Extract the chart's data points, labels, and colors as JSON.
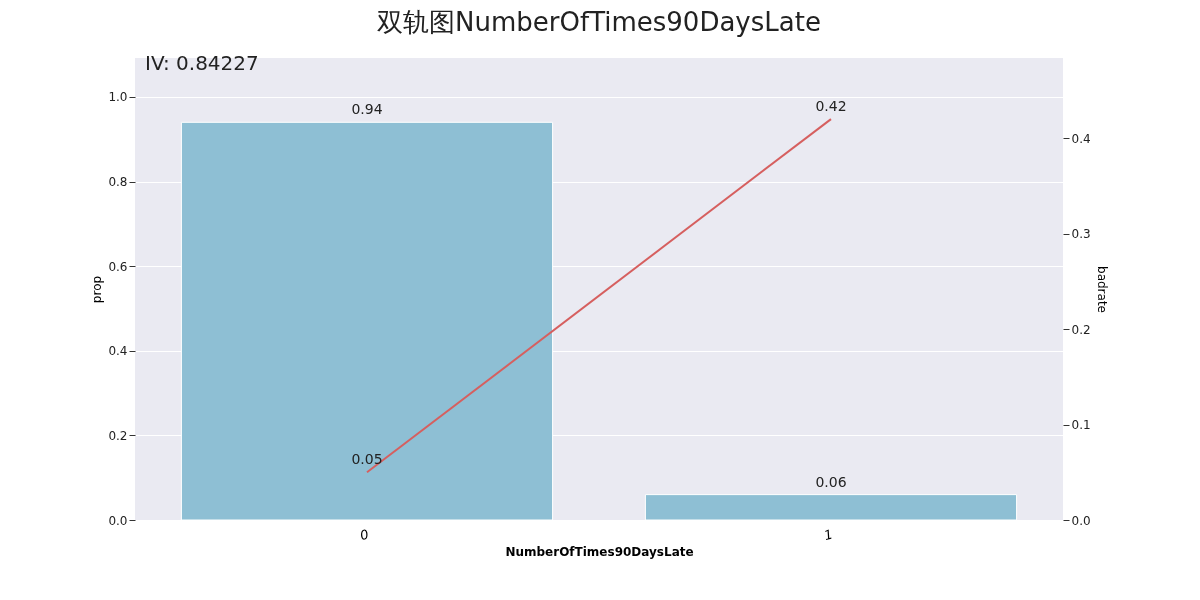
{
  "chart_data": {
    "type": "bar",
    "title": "双轨图NumberOfTimes90DaysLate",
    "xlabel": "NumberOfTimes90DaysLate",
    "ylabel": "prop",
    "y2label": "badrate",
    "annotations": [
      "IV: 0.84227"
    ],
    "categories": [
      "0",
      "1"
    ],
    "series": [
      {
        "color": "#8ebfd4",
        "values": [
          0.94,
          0.06
        ]
      },
      {
        "type": "line",
        "axis": "y2",
        "color": "#d65f5f",
        "values": [
          0.05,
          0.42
        ]
      }
    ],
    "ylim": [
      0,
      1.092
    ],
    "yticks": [
      {
        "value": 0,
        "label": "0.0"
      },
      0.2,
      0.4,
      0.6,
      0.8,
      {
        "value": 1,
        "label": "1.0"
      }
    ],
    "y2lim": [
      0,
      0.484
    ],
    "y2ticks": [
      {
        "value": 0,
        "label": "0.0"
      },
      0.1,
      0.2,
      0.3,
      0.4
    ],
    "grid": "y",
    "data_labels": true
  }
}
